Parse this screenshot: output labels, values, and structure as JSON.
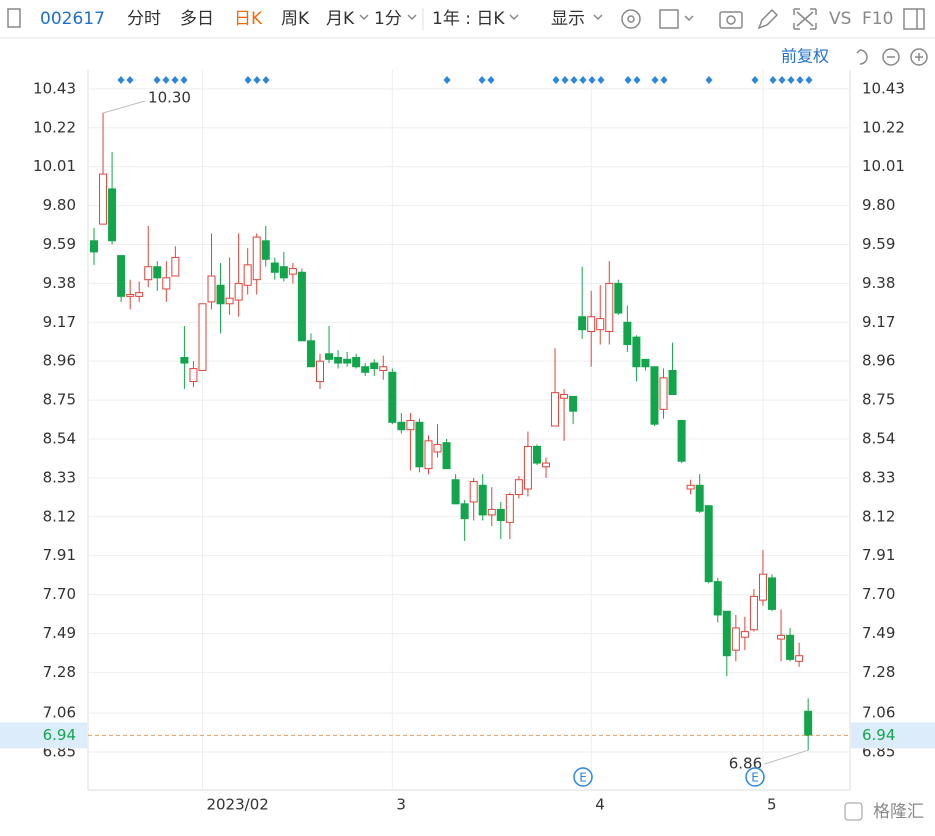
{
  "toolbar": {
    "code": "002617",
    "tabs": [
      "分时",
      "多日",
      "日K",
      "周K",
      "月K"
    ],
    "interval": "1分",
    "range": "1年 : 日K",
    "display": "显示",
    "vs": "VS",
    "f10": "F10"
  },
  "chart_data": {
    "type": "candlestick",
    "adjust_label": "前复权",
    "categories": [
      null,
      null,
      null,
      null,
      null,
      null,
      null,
      null,
      null,
      null,
      null,
      null,
      "2023/02",
      null,
      null,
      null,
      null,
      null,
      null,
      null,
      null,
      null,
      null,
      null,
      null,
      null,
      null,
      null,
      null,
      null,
      null,
      null,
      null,
      "3",
      null,
      null,
      null,
      null,
      null,
      null,
      null,
      null,
      null,
      null,
      null,
      null,
      null,
      null,
      null,
      null,
      null,
      null,
      null,
      null,
      null,
      "4",
      null,
      null,
      null,
      null,
      null,
      null,
      null,
      null,
      null,
      null,
      null,
      null,
      null,
      null,
      null,
      null,
      null,
      null,
      "5",
      null,
      null,
      null,
      null,
      null
    ],
    "open": [
      9.61,
      9.7,
      9.89,
      9.53,
      9.31,
      9.31,
      9.4,
      9.47,
      9.35,
      9.42,
      8.98,
      8.85,
      8.91,
      9.28,
      9.37,
      9.27,
      9.29,
      9.37,
      9.4,
      9.61,
      9.49,
      9.47,
      9.43,
      9.44,
      9.07,
      8.85,
      9.0,
      8.98,
      8.97,
      8.98,
      8.93,
      8.95,
      8.91,
      8.9,
      8.63,
      8.59,
      8.63,
      8.38,
      8.47,
      8.52,
      8.32,
      8.19,
      8.2,
      8.29,
      8.13,
      8.16,
      8.09,
      8.24,
      8.27,
      8.5,
      8.39,
      8.61,
      8.76,
      8.77,
      9.2,
      9.12,
      9.13,
      9.12,
      9.38,
      9.17,
      9.09,
      8.97,
      8.93,
      8.7,
      8.91,
      8.64,
      8.27,
      8.29,
      8.18,
      7.77,
      7.61,
      7.4,
      7.47,
      7.51,
      7.67,
      7.79,
      7.46,
      7.48,
      7.34,
      7.07
    ],
    "high": [
      9.68,
      10.3,
      10.09,
      9.53,
      9.4,
      9.39,
      9.69,
      9.5,
      9.5,
      9.58,
      9.15,
      8.96,
      9.27,
      9.65,
      9.49,
      9.52,
      9.65,
      9.57,
      9.65,
      9.69,
      9.52,
      9.55,
      9.49,
      9.46,
      9.11,
      9.0,
      9.15,
      9.02,
      9.01,
      9.0,
      8.95,
      8.97,
      8.99,
      8.92,
      8.68,
      8.68,
      8.65,
      8.56,
      8.62,
      8.54,
      8.35,
      8.21,
      8.33,
      8.35,
      8.28,
      8.2,
      8.25,
      8.34,
      8.58,
      8.51,
      8.44,
      9.03,
      8.81,
      8.77,
      9.47,
      9.34,
      9.37,
      9.5,
      9.4,
      9.26,
      9.1,
      8.97,
      8.93,
      8.92,
      9.06,
      8.64,
      8.32,
      8.35,
      8.18,
      7.79,
      7.61,
      7.59,
      7.58,
      7.73,
      7.94,
      7.81,
      7.62,
      7.52,
      7.44,
      7.14
    ],
    "low": [
      9.48,
      9.7,
      9.59,
      9.28,
      9.24,
      9.28,
      9.36,
      9.34,
      9.28,
      9.42,
      8.81,
      8.82,
      8.91,
      9.24,
      9.11,
      9.21,
      9.2,
      9.32,
      9.32,
      9.47,
      9.4,
      9.39,
      9.38,
      9.07,
      8.93,
      8.81,
      8.95,
      8.92,
      8.93,
      8.92,
      8.88,
      8.88,
      8.86,
      8.62,
      8.57,
      8.37,
      8.36,
      8.35,
      8.44,
      8.38,
      8.19,
      7.99,
      8.1,
      8.1,
      8.07,
      8.0,
      8.0,
      8.22,
      8.23,
      8.4,
      8.33,
      8.61,
      8.53,
      8.62,
      9.08,
      8.93,
      9.05,
      9.05,
      9.21,
      9.01,
      8.85,
      8.91,
      8.61,
      8.65,
      8.78,
      8.41,
      8.24,
      8.14,
      7.76,
      7.55,
      7.26,
      7.34,
      7.4,
      7.5,
      7.64,
      7.61,
      7.34,
      7.34,
      7.31,
      6.86
    ],
    "close": [
      9.55,
      9.97,
      9.61,
      9.31,
      9.32,
      9.33,
      9.47,
      9.41,
      9.41,
      9.52,
      8.95,
      8.92,
      9.27,
      9.42,
      9.27,
      9.3,
      9.38,
      9.48,
      9.63,
      9.51,
      9.44,
      9.41,
      9.46,
      9.07,
      8.93,
      8.96,
      8.97,
      8.95,
      8.95,
      8.93,
      8.9,
      8.92,
      8.93,
      8.63,
      8.59,
      8.64,
      8.39,
      8.53,
      8.51,
      8.38,
      8.19,
      8.11,
      8.31,
      8.13,
      8.16,
      8.1,
      8.24,
      8.32,
      8.5,
      8.41,
      8.41,
      8.79,
      8.78,
      8.69,
      9.13,
      9.2,
      9.19,
      9.38,
      9.22,
      9.05,
      8.93,
      8.93,
      8.62,
      8.87,
      8.78,
      8.42,
      8.29,
      8.15,
      7.77,
      7.59,
      7.37,
      7.52,
      7.5,
      7.69,
      7.81,
      7.62,
      7.48,
      7.35,
      7.37,
      6.94
    ],
    "up_color": "#e0433b",
    "down_color": "#13a54c",
    "ylim": [
      6.645,
      10.532
    ],
    "yticks": [
      10.43,
      10.22,
      10.01,
      {
        "value": 9.8,
        "label": "9.80"
      },
      9.59,
      9.38,
      9.17,
      8.96,
      8.75,
      8.54,
      8.33,
      8.12,
      7.91,
      {
        "value": 7.7,
        "label": "7.70"
      },
      7.49,
      7.28,
      7.06,
      6.85
    ],
    "grid": true,
    "annotations": [
      "10.30",
      "6.86"
    ],
    "last_price": {
      "value": 6.94,
      "label": "6.94"
    },
    "event_label": "E"
  },
  "watermark": "格隆汇"
}
